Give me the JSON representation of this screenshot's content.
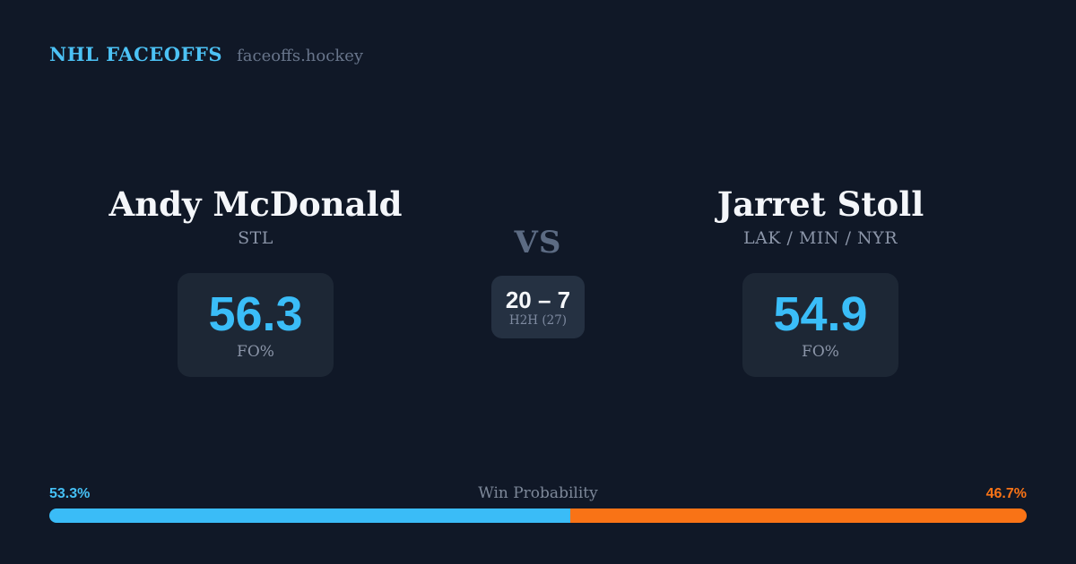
{
  "header": {
    "brand": "NHL FACEOFFS",
    "site": "faceoffs.hockey"
  },
  "matchup": {
    "vs_label": "VS",
    "player1": {
      "name": "Andy McDonald",
      "teams": "STL",
      "stat_value": "56.3",
      "stat_label": "FO%"
    },
    "player2": {
      "name": "Jarret Stoll",
      "teams": "LAK / MIN / NYR",
      "stat_value": "54.9",
      "stat_label": "FO%"
    },
    "h2h": {
      "record": "20 – 7",
      "label": "H2H (27)"
    }
  },
  "win_probability": {
    "title": "Win Probability",
    "left_label": "53.3%",
    "right_label": "46.7%",
    "left_value": 53.3,
    "right_value": 46.7
  },
  "colors": {
    "background": "#101827",
    "card_background": "#1d2735",
    "h2h_background": "#253142",
    "accent_blue": "#3abdf8",
    "brand_blue": "#4cc2f5",
    "accent_orange": "#f97316",
    "text_primary": "#f4f6fa",
    "text_muted": "#8b95a8",
    "vs_gray": "#5c6b83"
  }
}
